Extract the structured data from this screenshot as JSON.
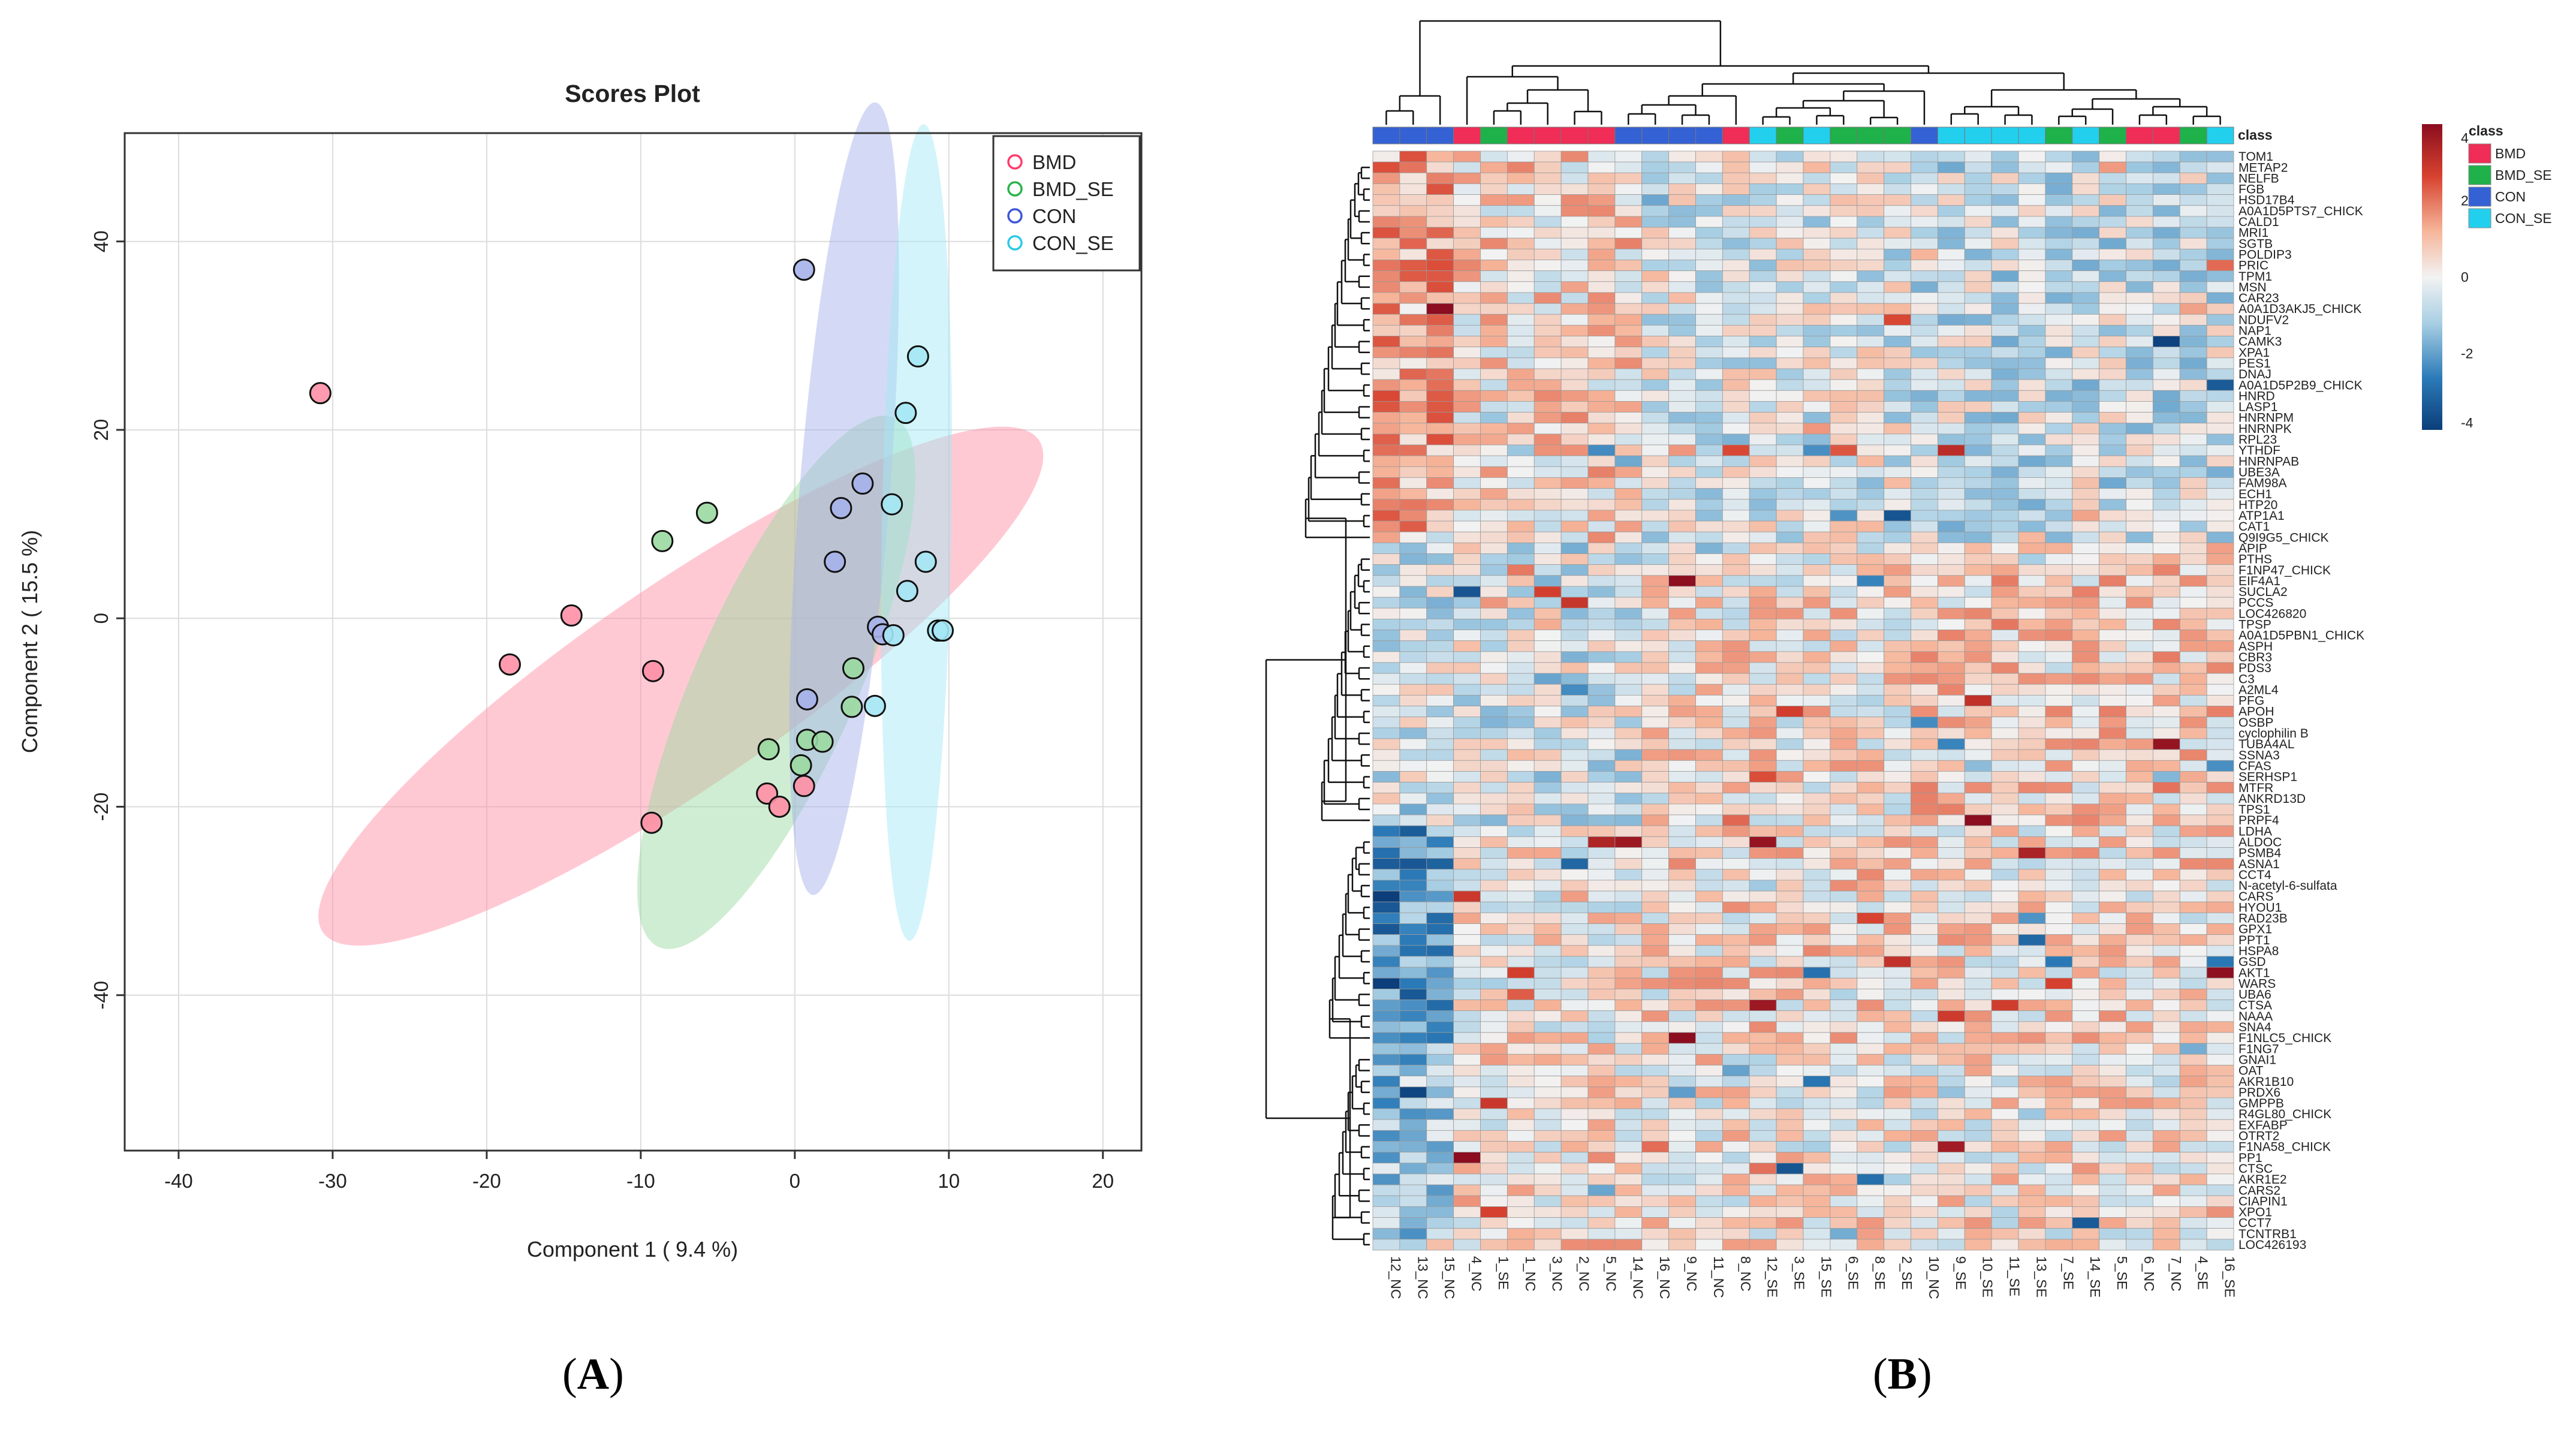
{
  "scores_plot": {
    "chart_data": {
      "type": "scatter",
      "title": "Scores Plot",
      "xlabel": "Component 1 ( 9.4 %)",
      "ylabel": "Component 2 ( 15.5 %)",
      "xlim": [
        -43.5,
        22.5
      ],
      "ylim": [
        -56.5,
        51.5
      ],
      "xticks": [
        -40,
        -30,
        -20,
        -10,
        0,
        10,
        20
      ],
      "yticks": [
        -40,
        -20,
        0,
        20,
        40
      ],
      "grid": true,
      "legend_position": "top-right",
      "series": [
        {
          "name": "BMD",
          "color": "#ff3b6b",
          "fill": "#ff8fa6",
          "points": [
            [
              -30.8,
              23.9
            ],
            [
              -14.5,
              0.3
            ],
            [
              -18.5,
              -4.9
            ],
            [
              -9.2,
              -5.6
            ],
            [
              -1.8,
              -18.6
            ],
            [
              -1.0,
              -20.0
            ],
            [
              0.6,
              -17.8
            ],
            [
              -9.3,
              -21.7
            ]
          ],
          "ellipse": {
            "cx": -7.4,
            "cy": -7.2,
            "rx": 28.2,
            "ry": 10.6,
            "angle_deg": 34.5
          }
        },
        {
          "name": "BMD_SE",
          "color": "#2ab34a",
          "fill": "#9bd9a1",
          "points": [
            [
              -8.6,
              8.2
            ],
            [
              -5.7,
              11.2
            ],
            [
              -1.7,
              -13.9
            ],
            [
              0.4,
              -15.6
            ],
            [
              0.8,
              -12.9
            ],
            [
              1.8,
              -13.1
            ],
            [
              3.8,
              -5.3
            ],
            [
              3.7,
              -9.4
            ]
          ],
          "ellipse": {
            "cx": -1.2,
            "cy": -6.8,
            "rx": 18.8,
            "ry": 8.6,
            "angle_deg": 66
          }
        },
        {
          "name": "CON",
          "color": "#3f56d6",
          "fill": "#a6b1ea",
          "points": [
            [
              0.6,
              37.0
            ],
            [
              4.4,
              14.3
            ],
            [
              3.0,
              11.7
            ],
            [
              2.6,
              6.0
            ],
            [
              5.4,
              -0.9
            ],
            [
              5.7,
              -1.7
            ],
            [
              0.8,
              -8.6
            ]
          ],
          "ellipse": {
            "cx": 3.2,
            "cy": 12.7,
            "rx": 25.8,
            "ry": 4.8,
            "angle_deg": 85.5
          }
        },
        {
          "name": "CON_SE",
          "color": "#2cc9e6",
          "fill": "#a4e7f4",
          "points": [
            [
              8.0,
              27.8
            ],
            [
              7.2,
              21.8
            ],
            [
              6.3,
              12.1
            ],
            [
              7.3,
              2.9
            ],
            [
              8.5,
              6.0
            ],
            [
              6.4,
              -1.8
            ],
            [
              9.3,
              -1.3
            ],
            [
              9.6,
              -1.3
            ],
            [
              5.2,
              -9.3
            ]
          ],
          "ellipse": {
            "cx": 7.9,
            "cy": 9.1,
            "rx": 26.5,
            "ry": 3.7,
            "angle_deg": 89
          }
        }
      ]
    }
  },
  "heatmap": {
    "chart_data": {
      "type": "heatmap",
      "class_label": "class",
      "columns": [
        "12_NC",
        "13_NC",
        "15_NC",
        "4_NC",
        "1_SE",
        "1_NC",
        "3_NC",
        "2_NC",
        "5_NC",
        "14_NC",
        "16_NC",
        "9_NC",
        "11_NC",
        "8_NC",
        "12_SE",
        "3_SE",
        "15_SE",
        "6_SE",
        "8_SE",
        "2_SE",
        "10_NC",
        "9_SE",
        "10_SE",
        "11_SE",
        "13_SE",
        "7_SE",
        "14_SE",
        "5_SE",
        "6_NC",
        "7_NC",
        "4_SE",
        "16_SE"
      ],
      "column_classes": [
        "CON",
        "CON",
        "CON",
        "BMD",
        "BMD_SE",
        "BMD",
        "BMD",
        "BMD",
        "BMD",
        "CON",
        "CON",
        "CON",
        "CON",
        "BMD",
        "CON_SE",
        "BMD_SE",
        "CON_SE",
        "BMD_SE",
        "BMD_SE",
        "BMD_SE",
        "CON",
        "CON_SE",
        "CON_SE",
        "CON_SE",
        "CON_SE",
        "BMD_SE",
        "CON_SE",
        "BMD_SE",
        "BMD",
        "BMD",
        "BMD_SE",
        "CON_SE"
      ],
      "row_labels": [
        "TOM1",
        "METAP2",
        "NELFB",
        "FGB",
        "HSD17B4",
        "A0A1D5PTS7_CHICK",
        "CALD1",
        "MRI1",
        "SGTB",
        "POLDIP3",
        "PRIC",
        "TPM1",
        "MSN",
        "CAR23",
        "A0A1D3AKJ5_CHICK",
        "NDUFV2",
        "NAP1",
        "CAMK3",
        "XPA1",
        "PES1",
        "DNAJ",
        "A0A1D5P2B9_CHICK",
        "HNRD",
        "LASP1",
        "HNRNPM",
        "HNRNPK",
        "RPL23",
        "YTHDF",
        "HNRNPAB",
        "UBE3A",
        "FAM98A",
        "ECH1",
        "HTP20",
        "ATP1A1",
        "CAT1",
        "Q9I9G5_CHICK",
        "APIP",
        "PTHS",
        "F1NP47_CHICK",
        "EIF4A1",
        "SUCLA2",
        "PCCS",
        "LOC426820",
        "TPSP",
        "A0A1D5PBN1_CHICK",
        "ASPH",
        "CBR3",
        "PDS3",
        "C3",
        "A2ML4",
        "PFG",
        "APOH",
        "OSBP",
        "cyclophilin B",
        "TUBA4AL",
        "SSNA3",
        "CFAS",
        "SERHSP1",
        "MTFR",
        "ANKRD13D",
        "TPS1",
        "PRPF4",
        "LDHA",
        "ALDOC",
        "PSMB4",
        "ASNA1",
        "CCT4",
        "N-acetyl-6-sulfata",
        "CARS",
        "HYOU1",
        "RAD23B",
        "GPX1",
        "PPT1",
        "HSPA8",
        "GSD",
        "AKT1",
        "WARS",
        "UBA6",
        "CTSA",
        "NAAA",
        "SNA4",
        "F1NLC5_CHICK",
        "F1NG7",
        "GNAI1",
        "OAT",
        "AKR1B10",
        "PRDX6",
        "GMPPB",
        "R4GL80_CHICK",
        "EXFABP",
        "OTRT2",
        "F1NA58_CHICK",
        "PP1",
        "CTSC",
        "AKR1E2",
        "CARS2",
        "CIAPIN1",
        "XPO1",
        "CCT7",
        "TCNTRB1",
        "LOC426193"
      ],
      "color_scale": {
        "min": -4,
        "max": 4,
        "ticks": [
          4,
          2,
          0,
          -2,
          -4
        ],
        "colors": [
          "#0b3e7a",
          "#2b7bb8",
          "#a9cfe4",
          "#f2f2f2",
          "#f6b59a",
          "#d7422f",
          "#8b0d1f"
        ]
      },
      "legend_title": "class",
      "legend_entries": [
        {
          "label": "BMD",
          "color": "#ef2d56"
        },
        {
          "label": "BMD_SE",
          "color": "#1fb14a"
        },
        {
          "label": "CON",
          "color": "#3462d4"
        },
        {
          "label": "CON_SE",
          "color": "#22d0ee"
        }
      ]
    }
  },
  "panel_labels": {
    "a": "A",
    "b": "B"
  }
}
